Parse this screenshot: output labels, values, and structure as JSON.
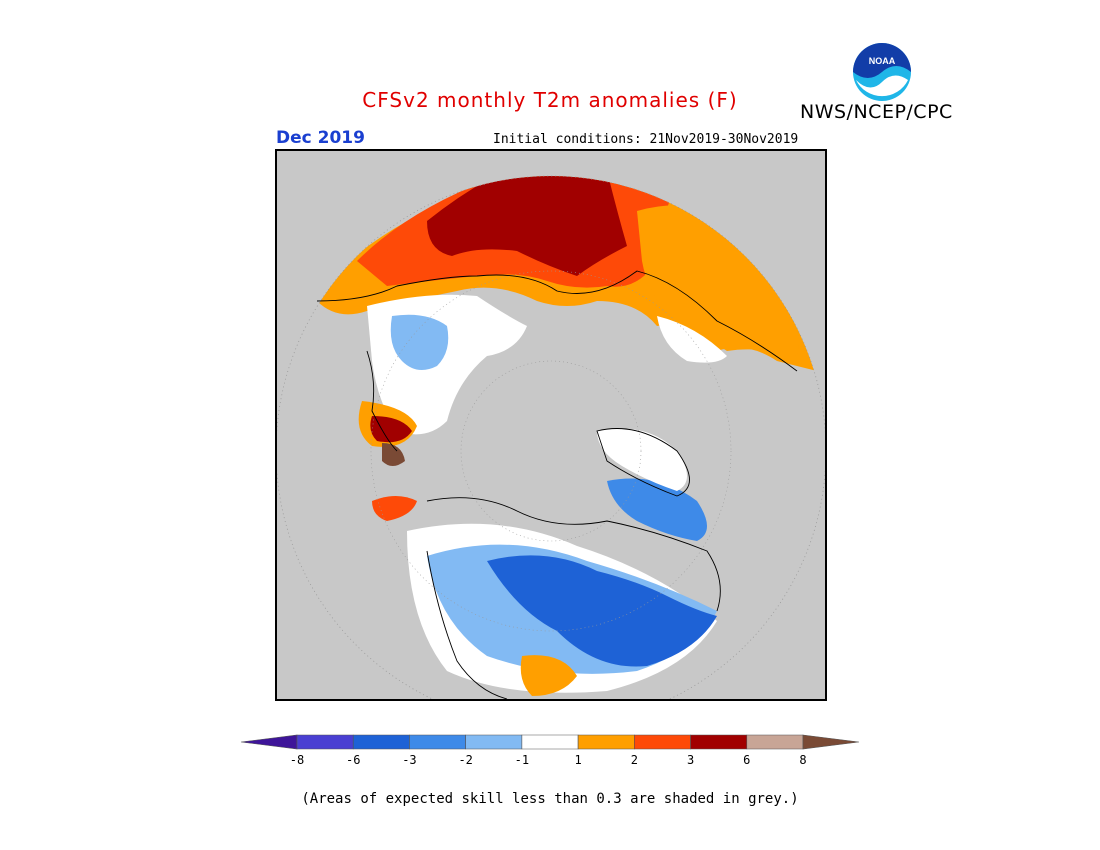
{
  "header": {
    "title": "CFSv2 monthly T2m anomalies (F)",
    "agency": "NWS/NCEP/CPC",
    "logo_text": "NOAA",
    "month": "Dec 2019",
    "initial_conditions": "Initial conditions: 21Nov2019-30Nov2019"
  },
  "legend": {
    "tick_labels": [
      "-8",
      "-6",
      "-3",
      "-2",
      "-1",
      "1",
      "2",
      "3",
      "6",
      "8"
    ],
    "bins": [
      {
        "color": "#3e1599"
      },
      {
        "color": "#4a3fd2"
      },
      {
        "color": "#1e62d6"
      },
      {
        "color": "#3e8ae8"
      },
      {
        "color": "#82baf3"
      },
      {
        "color": "#ffffff"
      },
      {
        "color": "#ff9f00"
      },
      {
        "color": "#fe4a08"
      },
      {
        "color": "#a10000"
      },
      {
        "color": "#c8a596"
      },
      {
        "color": "#7a4a35"
      }
    ]
  },
  "footnote": "(Areas of expected skill less than 0.3 are shaded in grey.)",
  "map": {
    "projection": "north-polar-stereographic",
    "background_color": "#c8c8c8",
    "ocean_color": "#c8c8c8"
  }
}
